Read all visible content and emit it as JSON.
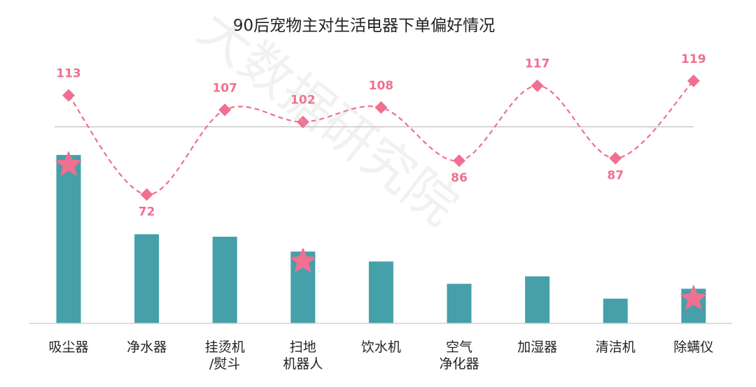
{
  "chart_data": {
    "type": "bar",
    "title": "90后宠物主对生活电器下单偏好情况",
    "watermark": "大数据研究院",
    "categories": [
      [
        "吸尘器"
      ],
      [
        "净水器"
      ],
      [
        "挂烫机",
        "/熨斗"
      ],
      [
        "扫地",
        "机器人"
      ],
      [
        "饮水机"
      ],
      [
        "空气",
        "净化器"
      ],
      [
        "加湿器"
      ],
      [
        "清洁机"
      ],
      [
        "除螨仪"
      ]
    ],
    "series": [
      {
        "type": "bar",
        "values": [
          68,
          36,
          35,
          29,
          25,
          16,
          19,
          10,
          14
        ],
        "color": "#45a0aa"
      },
      {
        "type": "line",
        "values": [
          113,
          72,
          107,
          102,
          108,
          86,
          117,
          87,
          119
        ],
        "data_labels": [
          "113",
          "72",
          "107",
          "102",
          "108",
          "86",
          "117",
          "87",
          "119"
        ],
        "label_pos": [
          "above",
          "below",
          "above",
          "above",
          "above",
          "below",
          "above",
          "below",
          "above"
        ],
        "color": "#ef7090",
        "marker": "diamond",
        "line_style": "dashed",
        "smooth": true
      }
    ],
    "reference_line": {
      "value": 100,
      "color": "#bbbbbb"
    },
    "highlight_marker": {
      "shape": "star",
      "color": "#ef7090",
      "categories": [
        0,
        3,
        8
      ]
    },
    "ylim_bar": [
      0,
      75
    ],
    "ylim_line": [
      60,
      125
    ],
    "grid": false,
    "legend": "none"
  }
}
